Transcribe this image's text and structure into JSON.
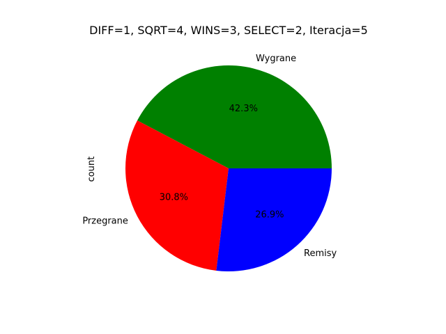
{
  "chart_data": {
    "type": "pie",
    "title": "DIFF=1, SQRT=4, WINS=3, SELECT=2, Iteracja=5",
    "ylabel": "count",
    "xlabel": "",
    "start_angle_deg": 0,
    "direction": "counterclockwise",
    "slices": [
      {
        "label": "Wygrane",
        "value": 42.3,
        "pct_label": "42.3%",
        "color": "#008000"
      },
      {
        "label": "Przegrane",
        "value": 30.8,
        "pct_label": "30.8%",
        "color": "#ff0000"
      },
      {
        "label": "Remisy",
        "value": 26.9,
        "pct_label": "26.9%",
        "color": "#0000ff"
      }
    ]
  }
}
